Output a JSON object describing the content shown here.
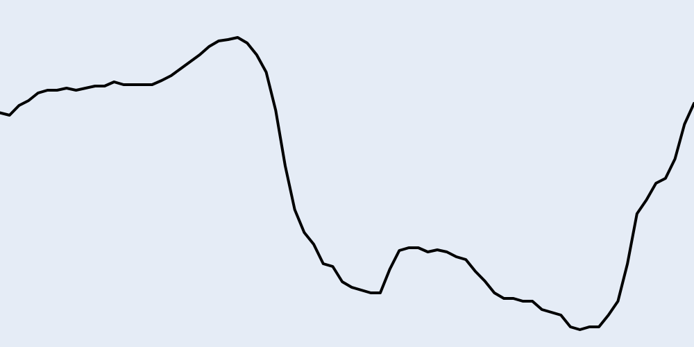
{
  "chart_data": {
    "type": "line",
    "title": "",
    "xlabel": "",
    "ylabel": "",
    "grid": false,
    "legend": "none",
    "xlim": [
      0,
      73
    ],
    "ylim": [
      0,
      100
    ],
    "colors": {
      "background": "#e5ecf6",
      "line": "#000000"
    },
    "series": [
      {
        "values": [
          67.5,
          66.8,
          69.6,
          71.0,
          73.2,
          74.0,
          74.0,
          74.6,
          74.0,
          74.6,
          75.2,
          75.2,
          76.4,
          75.6,
          75.6,
          75.6,
          75.6,
          76.8,
          78.2,
          80.2,
          82.2,
          84.2,
          86.6,
          88.2,
          88.6,
          89.2,
          87.6,
          84.2,
          79.2,
          68.2,
          52.2,
          39.6,
          33.0,
          29.6,
          24.0,
          23.2,
          18.8,
          17.2,
          16.4,
          15.6,
          15.6,
          22.4,
          27.8,
          28.6,
          28.6,
          27.4,
          28.0,
          27.4,
          26.0,
          25.2,
          21.8,
          19.0,
          15.6,
          14.0,
          14.0,
          13.2,
          13.2,
          10.8,
          10.0,
          9.2,
          5.8,
          5.0,
          5.8,
          5.8,
          9.2,
          13.2,
          24.0,
          38.4,
          42.4,
          47.2,
          48.6,
          54.2,
          64.2,
          70.2
        ]
      }
    ]
  }
}
